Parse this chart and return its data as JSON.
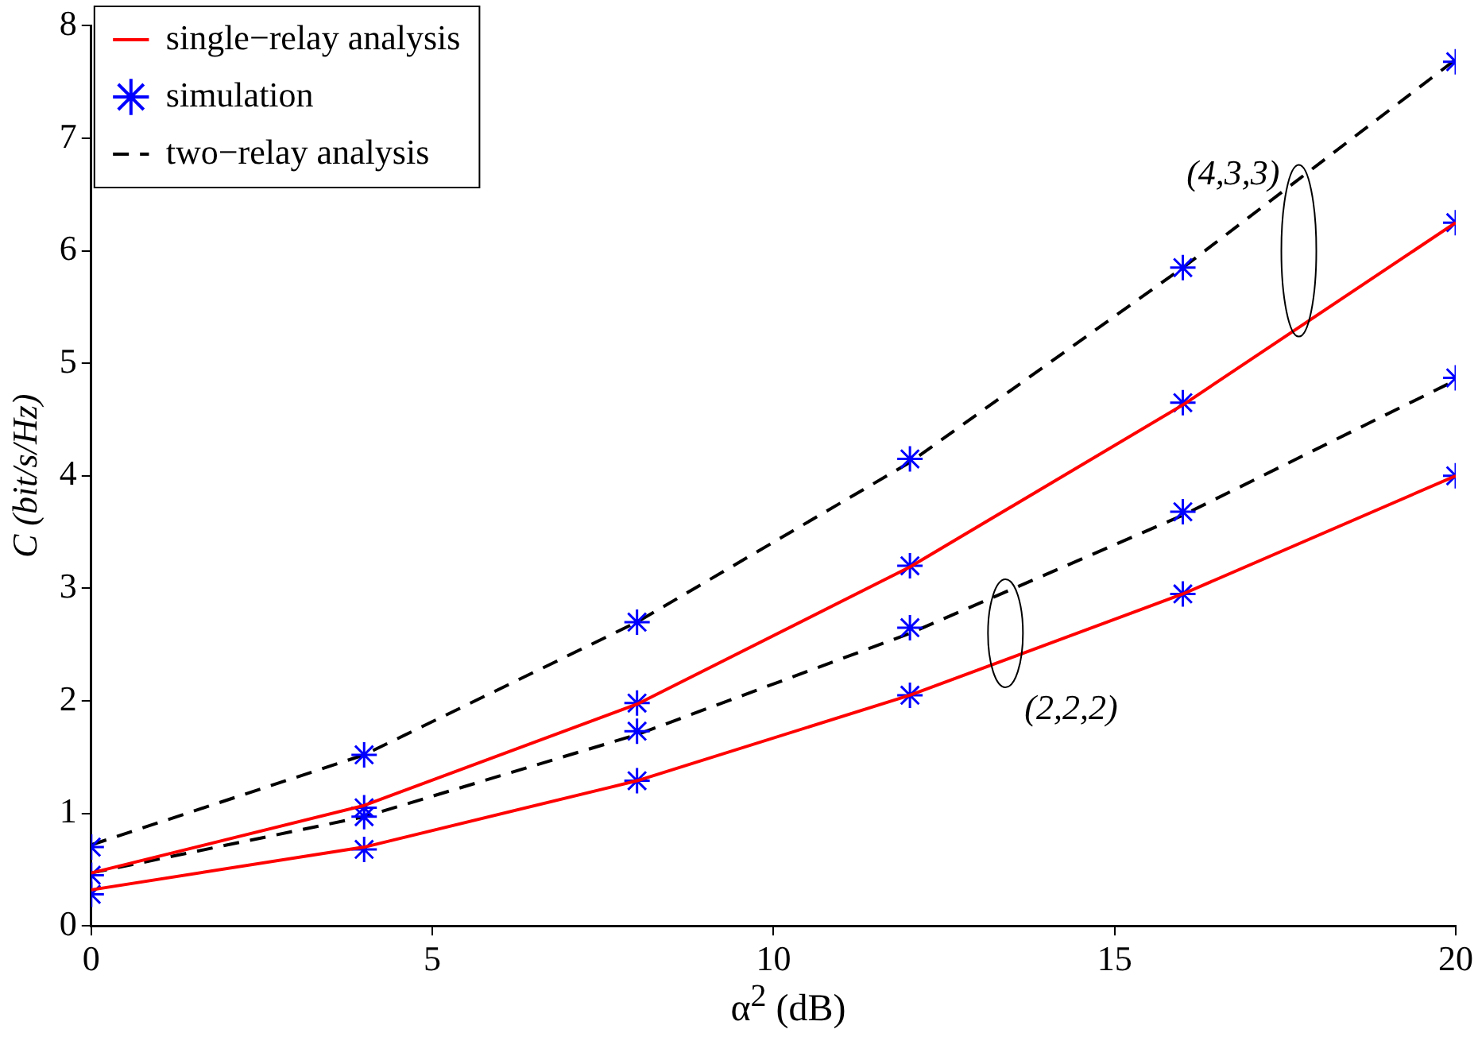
{
  "chart_data": {
    "type": "line",
    "xlabel": "α$^{2}$ (dB)",
    "ylabel": "C (bit/s/Hz)",
    "xlim": [
      0,
      20
    ],
    "xticks": [
      0,
      5,
      10,
      15,
      20
    ],
    "ylim": [
      0,
      8
    ],
    "yticks": [
      0,
      1,
      2,
      3,
      4,
      5,
      6,
      7,
      8
    ],
    "grid": false,
    "legend": "top left",
    "series": [
      {
        "name": "single−relay analysis",
        "color": "#ff0000",
        "line_style": "solid",
        "marker": "none",
        "x": [
          0,
          4,
          8,
          12,
          16,
          20
        ],
        "values": [
          0.47,
          1.07,
          1.97,
          3.19,
          4.63,
          6.25
        ]
      },
      {
        "color": "#ff0000",
        "line_style": "solid",
        "marker": "none",
        "x": [
          0,
          4,
          8,
          12,
          16,
          20
        ],
        "values": [
          0.32,
          0.7,
          1.29,
          2.05,
          2.95,
          4.0
        ]
      },
      {
        "name": "simulation",
        "type": "scatter",
        "color": "#0000ff",
        "marker": "cross",
        "x": [
          0,
          0,
          0,
          4,
          4,
          4,
          4,
          8,
          8,
          8,
          8,
          12,
          12,
          12,
          12,
          16,
          16,
          16,
          16,
          20,
          20,
          20,
          20
        ],
        "values": [
          0.28,
          0.45,
          0.7,
          0.68,
          0.97,
          1.05,
          1.52,
          1.29,
          1.73,
          1.98,
          2.7,
          2.05,
          2.65,
          3.2,
          4.15,
          2.95,
          3.68,
          4.65,
          5.85,
          4.0,
          4.87,
          6.25,
          7.68
        ]
      },
      {
        "name": "two−relay analysis",
        "color": "#000000",
        "line_style": "dashed",
        "marker": "none",
        "x": [
          0,
          4,
          8,
          12,
          16,
          20
        ],
        "values": [
          0.72,
          1.52,
          2.7,
          4.12,
          5.85,
          7.7
        ]
      },
      {
        "color": "#000000",
        "line_style": "dashed",
        "marker": "none",
        "x": [
          0,
          4,
          8,
          12,
          16,
          20
        ],
        "values": [
          0.47,
          0.97,
          1.7,
          2.6,
          3.65,
          4.85
        ]
      }
    ],
    "annotations": [
      "(4,3,3)",
      "(2,2,2)"
    ]
  }
}
